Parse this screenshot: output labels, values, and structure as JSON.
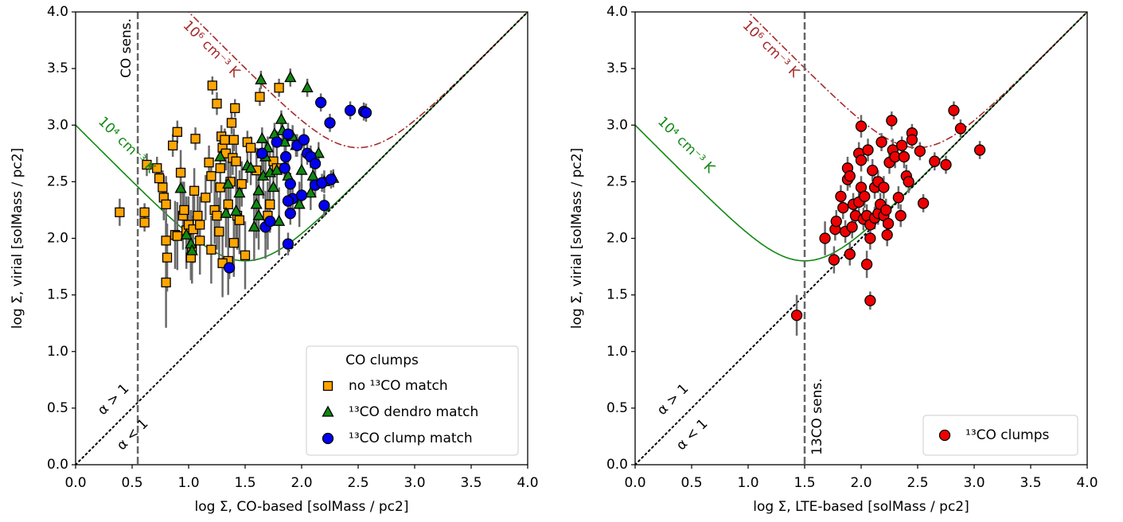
{
  "chart_data": [
    {
      "type": "scatter",
      "xlabel": "log Σ, CO-based [solMass / pc2]",
      "ylabel": "log Σ, virial [solMass / pc2]",
      "xlim": [
        0,
        4
      ],
      "ylim": [
        0,
        4
      ],
      "xticks": [
        {
          "value": 0,
          "label": "0.0"
        },
        {
          "value": 0.5,
          "label": "0.5"
        },
        {
          "value": 1,
          "label": "1.0"
        },
        {
          "value": 1.5,
          "label": "1.5"
        },
        {
          "value": 2,
          "label": "2.0"
        },
        {
          "value": 2.5,
          "label": "2.5"
        },
        {
          "value": 3,
          "label": "3.0"
        },
        {
          "value": 3.5,
          "label": "3.5"
        },
        {
          "value": 4,
          "label": "4.0"
        }
      ],
      "yticks": [
        {
          "value": 0,
          "label": "0.0"
        },
        {
          "value": 0.5,
          "label": "0.5"
        },
        {
          "value": 1,
          "label": "1.0"
        },
        {
          "value": 1.5,
          "label": "1.5"
        },
        {
          "value": 2,
          "label": "2.0"
        },
        {
          "value": 2.5,
          "label": "2.5"
        },
        {
          "value": 3,
          "label": "3.0"
        },
        {
          "value": 3.5,
          "label": "3.5"
        },
        {
          "value": 4,
          "label": "4.0"
        }
      ],
      "sensitivity": {
        "x": 0.55,
        "label": "CO sens."
      },
      "curves": [
        {
          "label": "10⁴ cm⁻³ K",
          "log_pressure": 4,
          "color": "#118811",
          "dash": "solid"
        },
        {
          "label": "10⁶ cm⁻³ K",
          "log_pressure": 6,
          "color": "#a52a2a",
          "dash": "dashdot"
        }
      ],
      "alpha_labels": [
        "α > 1",
        "α < 1"
      ],
      "legend": {
        "title": "CO clumps",
        "corner": "lower right"
      },
      "series": [
        {
          "name": "no ¹³CO match",
          "color": "#ffa500",
          "marker": "square",
          "x": [
            0.39,
            0.61,
            0.61,
            0.63,
            0.72,
            0.74,
            0.77,
            0.78,
            0.8,
            0.8,
            0.81,
            0.8,
            0.86,
            0.9,
            0.93,
            0.95,
            0.96,
            0.98,
            1.0,
            1.02,
            1.03,
            1.04,
            1.05,
            1.06,
            1.08,
            0.88,
            0.9,
            1.1,
            1.15,
            1.18,
            1.2,
            1.21,
            1.25,
            1.23,
            1.25,
            1.27,
            1.28,
            1.29,
            1.3,
            1.32,
            1.33,
            1.35,
            1.37,
            1.38,
            1.39,
            1.4,
            1.41,
            1.42,
            1.43,
            1.45,
            1.47,
            1.5,
            1.52,
            1.55,
            1.6,
            1.63,
            1.65,
            1.7,
            1.72,
            1.75,
            1.78,
            1.8,
            1.35,
            1.4,
            1.2,
            1.3,
            1.1,
            1.28
          ],
          "values": [
            2.23,
            2.23,
            2.14,
            2.65,
            2.62,
            2.53,
            2.45,
            2.36,
            2.3,
            1.98,
            1.83,
            1.61,
            2.82,
            2.94,
            2.58,
            2.2,
            2.25,
            2.07,
            2.12,
            1.83,
            1.9,
            2.08,
            2.42,
            2.88,
            2.2,
            2.03,
            2.02,
            2.12,
            2.36,
            2.67,
            2.55,
            3.35,
            3.19,
            2.25,
            2.2,
            2.06,
            2.62,
            2.9,
            2.8,
            2.87,
            2.75,
            2.3,
            2.5,
            3.02,
            2.71,
            2.87,
            3.15,
            2.68,
            2.2,
            2.16,
            2.48,
            1.85,
            2.85,
            2.8,
            2.6,
            3.25,
            2.75,
            2.2,
            2.3,
            2.68,
            2.62,
            3.33,
            1.8,
            1.96,
            1.9,
            1.78,
            1.98,
            2.45
          ],
          "yerr": [
            0.12,
            0.08,
            0.08,
            0.1,
            0.1,
            0.1,
            0.15,
            0.2,
            0.25,
            0.2,
            0.3,
            0.4,
            0.1,
            0.1,
            0.2,
            0.3,
            0.25,
            0.3,
            0.25,
            0.2,
            0.3,
            0.3,
            0.2,
            0.1,
            0.25,
            0.3,
            0.3,
            0.25,
            0.2,
            0.15,
            0.15,
            0.08,
            0.1,
            0.3,
            0.3,
            0.3,
            0.2,
            0.1,
            0.1,
            0.1,
            0.15,
            0.3,
            0.2,
            0.1,
            0.15,
            0.1,
            0.08,
            0.2,
            0.3,
            0.3,
            0.2,
            0.3,
            0.1,
            0.1,
            0.2,
            0.08,
            0.15,
            0.3,
            0.25,
            0.15,
            0.15,
            0.08,
            0.3,
            0.3,
            0.3,
            0.3,
            0.3,
            0.2
          ]
        },
        {
          "name": "¹³CO dendro match",
          "color": "#118811",
          "marker": "triangle",
          "x": [
            0.93,
            0.98,
            1.02,
            1.03,
            1.28,
            1.33,
            1.35,
            1.42,
            1.45,
            1.52,
            1.55,
            1.58,
            1.6,
            1.62,
            1.64,
            1.65,
            1.66,
            1.68,
            1.7,
            1.72,
            1.75,
            1.76,
            1.78,
            1.8,
            1.82,
            1.83,
            1.85,
            1.88,
            1.9,
            1.92,
            1.95,
            1.98,
            2.0,
            2.05,
            2.08,
            2.1,
            2.15,
            2.2,
            2.28,
            1.62,
            1.68
          ],
          "values": [
            2.44,
            2.03,
            1.95,
            1.89,
            2.72,
            2.22,
            2.48,
            2.24,
            2.4,
            2.64,
            2.62,
            2.1,
            2.3,
            2.42,
            3.4,
            2.88,
            2.55,
            2.72,
            2.8,
            2.58,
            2.45,
            2.92,
            2.6,
            2.15,
            3.05,
            2.95,
            2.85,
            2.55,
            3.42,
            2.9,
            2.82,
            2.3,
            2.6,
            3.33,
            2.4,
            2.55,
            2.75,
            2.5,
            2.53,
            2.2,
            2.12
          ],
          "yerr": [
            0.2,
            0.3,
            0.3,
            0.2,
            0.2,
            0.3,
            0.2,
            0.3,
            0.2,
            0.15,
            0.15,
            0.3,
            0.3,
            0.2,
            0.08,
            0.1,
            0.2,
            0.15,
            0.1,
            0.2,
            0.2,
            0.1,
            0.15,
            0.3,
            0.08,
            0.1,
            0.1,
            0.15,
            0.08,
            0.1,
            0.1,
            0.2,
            0.15,
            0.08,
            0.15,
            0.1,
            0.1,
            0.1,
            0.08,
            0.3,
            0.3
          ]
        },
        {
          "name": "¹³CO clump match",
          "color": "#0000ee",
          "marker": "circle",
          "x": [
            1.36,
            1.65,
            1.68,
            1.72,
            1.78,
            1.85,
            1.88,
            1.88,
            1.9,
            1.9,
            1.92,
            1.96,
            2.0,
            2.02,
            2.05,
            2.08,
            2.12,
            2.12,
            2.17,
            2.18,
            2.2,
            2.25,
            2.26,
            2.43,
            2.55,
            2.57,
            1.86,
            1.88
          ],
          "values": [
            1.74,
            2.75,
            2.1,
            2.15,
            2.85,
            2.62,
            2.92,
            1.95,
            2.22,
            2.48,
            2.35,
            2.82,
            2.38,
            2.87,
            2.75,
            2.72,
            2.47,
            2.66,
            3.2,
            2.49,
            2.29,
            3.02,
            2.52,
            3.13,
            3.12,
            3.11,
            2.72,
            2.33
          ],
          "yerr": [
            0.1,
            0.1,
            0.1,
            0.1,
            0.1,
            0.1,
            0.1,
            0.1,
            0.1,
            0.1,
            0.1,
            0.1,
            0.1,
            0.1,
            0.1,
            0.1,
            0.1,
            0.1,
            0.08,
            0.08,
            0.1,
            0.08,
            0.08,
            0.08,
            0.08,
            0.08,
            0.1,
            0.1
          ]
        }
      ]
    },
    {
      "type": "scatter",
      "xlabel": "log Σ, LTE-based [solMass / pc2]",
      "ylabel": "log Σ, virial [solMass / pc2]",
      "xlim": [
        0,
        4
      ],
      "ylim": [
        0,
        4
      ],
      "xticks": [
        {
          "value": 0,
          "label": "0.0"
        },
        {
          "value": 0.5,
          "label": "0.5"
        },
        {
          "value": 1,
          "label": "1.0"
        },
        {
          "value": 1.5,
          "label": "1.5"
        },
        {
          "value": 2,
          "label": "2.0"
        },
        {
          "value": 2.5,
          "label": "2.5"
        },
        {
          "value": 3,
          "label": "3.0"
        },
        {
          "value": 3.5,
          "label": "3.5"
        },
        {
          "value": 4,
          "label": "4.0"
        }
      ],
      "yticks": [
        {
          "value": 0,
          "label": "0.0"
        },
        {
          "value": 0.5,
          "label": "0.5"
        },
        {
          "value": 1,
          "label": "1.0"
        },
        {
          "value": 1.5,
          "label": "1.5"
        },
        {
          "value": 2,
          "label": "2.0"
        },
        {
          "value": 2.5,
          "label": "2.5"
        },
        {
          "value": 3,
          "label": "3.0"
        },
        {
          "value": 3.5,
          "label": "3.5"
        },
        {
          "value": 4,
          "label": "4.0"
        }
      ],
      "sensitivity": {
        "x": 1.5,
        "label": "13CO sens."
      },
      "curves": [
        {
          "label": "10⁴ cm⁻³ K",
          "log_pressure": 4,
          "color": "#118811",
          "dash": "solid"
        },
        {
          "label": "10⁶ cm⁻³ K",
          "log_pressure": 6,
          "color": "#a52a2a",
          "dash": "dashdot"
        }
      ],
      "alpha_labels": [
        "α > 1",
        "α < 1"
      ],
      "legend": {
        "corner": "lower right"
      },
      "series": [
        {
          "name": "¹³CO clumps",
          "color": "#ee0000",
          "marker": "circle",
          "x": [
            1.43,
            1.68,
            1.76,
            1.77,
            1.78,
            1.82,
            1.84,
            1.86,
            1.88,
            1.88,
            1.9,
            1.9,
            1.92,
            1.93,
            1.95,
            1.98,
            1.98,
            2.0,
            2.0,
            2.0,
            2.02,
            2.03,
            2.05,
            2.05,
            2.06,
            2.08,
            2.08,
            2.08,
            2.1,
            2.12,
            2.12,
            2.15,
            2.15,
            2.17,
            2.18,
            2.2,
            2.2,
            2.22,
            2.23,
            2.24,
            2.25,
            2.27,
            2.28,
            2.3,
            2.33,
            2.35,
            2.36,
            2.38,
            2.4,
            2.42,
            2.45,
            2.45,
            2.52,
            2.55,
            2.65,
            2.75,
            2.82,
            2.88,
            3.05
          ],
          "values": [
            1.32,
            2.0,
            1.81,
            2.08,
            2.15,
            2.37,
            2.27,
            2.06,
            2.62,
            2.52,
            2.55,
            1.86,
            2.1,
            2.3,
            2.2,
            2.75,
            2.32,
            2.99,
            2.69,
            2.45,
            2.17,
            2.37,
            1.77,
            2.2,
            2.78,
            2.0,
            1.45,
            2.12,
            2.6,
            2.45,
            2.18,
            2.22,
            2.5,
            2.3,
            2.85,
            2.2,
            2.45,
            2.25,
            2.03,
            2.13,
            2.67,
            3.04,
            2.78,
            2.72,
            2.36,
            2.2,
            2.82,
            2.72,
            2.55,
            2.5,
            2.93,
            2.87,
            2.77,
            2.31,
            2.68,
            2.65,
            3.13,
            2.97,
            2.78
          ],
          "yerr": [
            0.18,
            0.15,
            0.12,
            0.1,
            0.1,
            0.1,
            0.1,
            0.1,
            0.1,
            0.1,
            0.1,
            0.1,
            0.1,
            0.1,
            0.1,
            0.1,
            0.1,
            0.1,
            0.1,
            0.1,
            0.1,
            0.1,
            0.12,
            0.1,
            0.1,
            0.1,
            0.08,
            0.1,
            0.1,
            0.1,
            0.1,
            0.1,
            0.1,
            0.1,
            0.08,
            0.1,
            0.1,
            0.1,
            0.1,
            0.1,
            0.1,
            0.08,
            0.1,
            0.1,
            0.1,
            0.1,
            0.08,
            0.1,
            0.1,
            0.1,
            0.08,
            0.08,
            0.08,
            0.08,
            0.08,
            0.08,
            0.08,
            0.08,
            0.08
          ]
        }
      ]
    }
  ]
}
